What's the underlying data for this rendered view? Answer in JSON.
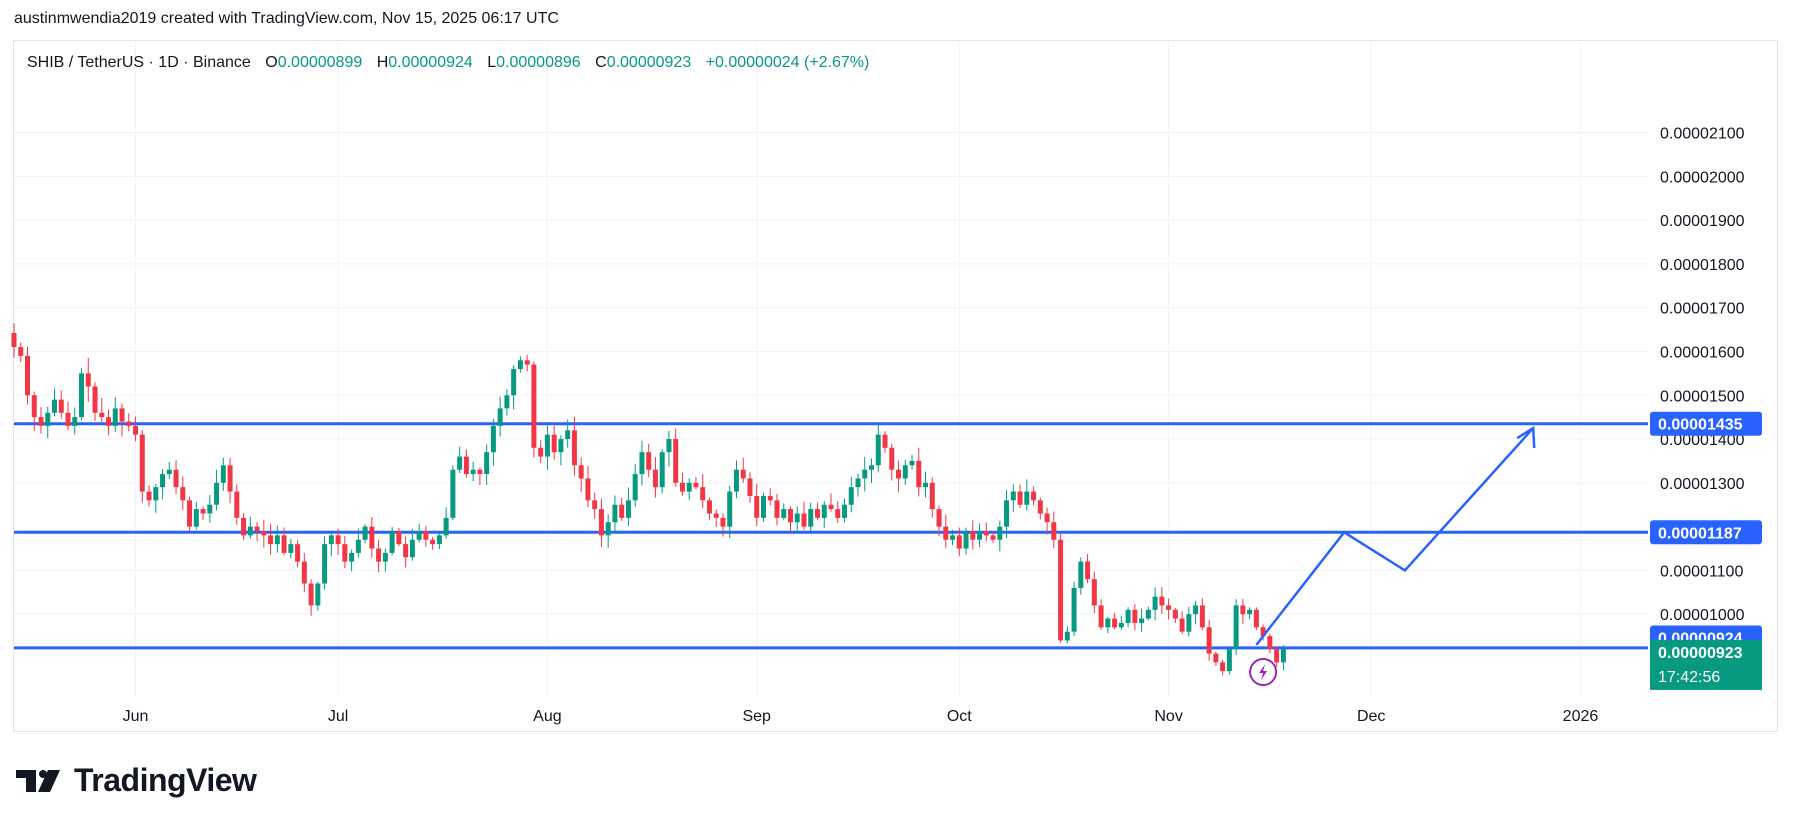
{
  "header": {
    "credit": "austinmwendia2019 created with TradingView.com, Nov 15, 2025 06:17 UTC"
  },
  "legend": {
    "symbol": "SHIB / TetherUS · 1D · Binance",
    "open_label": "O",
    "open": "0.00000899",
    "high_label": "H",
    "high": "0.00000924",
    "low_label": "L",
    "low": "0.00000896",
    "close_label": "C",
    "close": "0.00000923",
    "change": "+0.00000024 (+2.67%)"
  },
  "brand": {
    "name": "TradingView"
  },
  "colors": {
    "up": "#089981",
    "down": "#f23645",
    "line": "#2962ff",
    "green_tag": "#089981",
    "grid": "#f0f3fa",
    "signal": "#9c27b0"
  },
  "chart_data": {
    "type": "candlestick",
    "y_axis_ticks": [
      "0.00002100",
      "0.00002000",
      "0.00001900",
      "0.00001800",
      "0.00001700",
      "0.00001600",
      "0.00001500",
      "0.00001400",
      "0.00001300",
      "0.00001100",
      "0.00001000"
    ],
    "ylim": [
      8.2e-06,
      2.22e-05
    ],
    "x_axis_ticks": [
      {
        "label": "Jun",
        "date": "2025-06-01"
      },
      {
        "label": "Jul",
        "date": "2025-07-01"
      },
      {
        "label": "Aug",
        "date": "2025-08-01"
      },
      {
        "label": "Sep",
        "date": "2025-09-01"
      },
      {
        "label": "Oct",
        "date": "2025-10-01"
      },
      {
        "label": "Nov",
        "date": "2025-11-01"
      },
      {
        "label": "Dec",
        "date": "2025-12-01"
      },
      {
        "label": "2026",
        "date": "2026-01-01"
      }
    ],
    "xlim": [
      "2025-05-14",
      "2026-01-11"
    ],
    "horizontal_levels": [
      {
        "value": 1.435e-05,
        "label": "0.00001435"
      },
      {
        "value": 1.187e-05,
        "label": "0.00001187"
      },
      {
        "value": 9.23e-06,
        "label": ""
      }
    ],
    "price_tags": {
      "high": "0.00000924",
      "last": "0.00000923",
      "countdown": "17:42:56"
    },
    "projection": [
      {
        "date": "2025-11-14",
        "value": 9.3e-06
      },
      {
        "date": "2025-11-27",
        "value": 1.187e-05
      },
      {
        "date": "2025-12-06",
        "value": 1.1e-05
      },
      {
        "date": "2025-12-25",
        "value": 1.425e-05
      }
    ],
    "closes": [
      1.61e-05,
      1.59e-05,
      1.5e-05,
      1.45e-05,
      1.43e-05,
      1.46e-05,
      1.49e-05,
      1.46e-05,
      1.43e-05,
      1.45e-05,
      1.55e-05,
      1.52e-05,
      1.46e-05,
      1.45e-05,
      1.43e-05,
      1.47e-05,
      1.44e-05,
      1.43e-05,
      1.41e-05,
      1.28e-05,
      1.26e-05,
      1.29e-05,
      1.32e-05,
      1.33e-05,
      1.29e-05,
      1.26e-05,
      1.2e-05,
      1.24e-05,
      1.23e-05,
      1.25e-05,
      1.3e-05,
      1.34e-05,
      1.28e-05,
      1.22e-05,
      1.18e-05,
      1.2e-05,
      1.19e-05,
      1.18e-05,
      1.16e-05,
      1.18e-05,
      1.14e-05,
      1.16e-05,
      1.12e-05,
      1.07e-05,
      1.02e-05,
      1.07e-05,
      1.16e-05,
      1.18e-05,
      1.16e-05,
      1.12e-05,
      1.14e-05,
      1.17e-05,
      1.2e-05,
      1.15e-05,
      1.12e-05,
      1.14e-05,
      1.19e-05,
      1.16e-05,
      1.13e-05,
      1.17e-05,
      1.19e-05,
      1.17e-05,
      1.16e-05,
      1.18e-05,
      1.22e-05,
      1.33e-05,
      1.36e-05,
      1.32e-05,
      1.33e-05,
      1.32e-05,
      1.37e-05,
      1.43e-05,
      1.47e-05,
      1.5e-05,
      1.56e-05,
      1.58e-05,
      1.57e-05,
      1.38e-05,
      1.36e-05,
      1.41e-05,
      1.37e-05,
      1.4e-05,
      1.42e-05,
      1.34e-05,
      1.31e-05,
      1.26e-05,
      1.24e-05,
      1.18e-05,
      1.21e-05,
      1.25e-05,
      1.22e-05,
      1.26e-05,
      1.32e-05,
      1.37e-05,
      1.33e-05,
      1.29e-05,
      1.37e-05,
      1.4e-05,
      1.3e-05,
      1.28e-05,
      1.3e-05,
      1.29e-05,
      1.26e-05,
      1.23e-05,
      1.22e-05,
      1.2e-05,
      1.28e-05,
      1.33e-05,
      1.31e-05,
      1.27e-05,
      1.22e-05,
      1.27e-05,
      1.26e-05,
      1.22e-05,
      1.24e-05,
      1.21e-05,
      1.23e-05,
      1.2e-05,
      1.24e-05,
      1.22e-05,
      1.25e-05,
      1.24e-05,
      1.22e-05,
      1.25e-05,
      1.29e-05,
      1.31e-05,
      1.33e-05,
      1.34e-05,
      1.41e-05,
      1.38e-05,
      1.33e-05,
      1.31e-05,
      1.34e-05,
      1.35e-05,
      1.29e-05,
      1.3e-05,
      1.24e-05,
      1.2e-05,
      1.17e-05,
      1.18e-05,
      1.15e-05,
      1.19e-05,
      1.17e-05,
      1.19e-05,
      1.18e-05,
      1.17e-05,
      1.2e-05,
      1.26e-05,
      1.28e-05,
      1.25e-05,
      1.28e-05,
      1.26e-05,
      1.23e-05,
      1.21e-05,
      1.17e-05,
      9.4e-06,
      9.6e-06,
      1.06e-05,
      1.12e-05,
      1.08e-05,
      1.02e-05,
      9.7e-06,
      9.9e-06,
      9.7e-06,
      9.8e-06,
      1.01e-05,
      9.8e-06,
      9.9e-06,
      1.01e-05,
      1.04e-05,
      1.02e-05,
      1.01e-05,
      9.9e-06,
      9.6e-06,
      1e-05,
      1.02e-05,
      9.7e-06,
      9.1e-06,
      8.9e-06,
      8.7e-06,
      9.2e-06,
      1.02e-05,
      1e-05,
      1.01e-05,
      9.7e-06,
      9.5e-06,
      9.2e-06,
      8.9e-06,
      9.2e-06
    ]
  }
}
